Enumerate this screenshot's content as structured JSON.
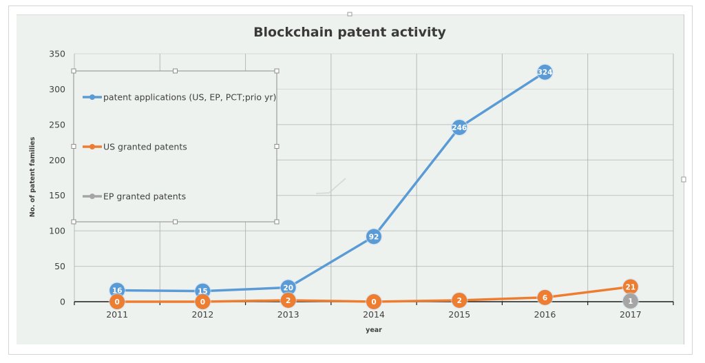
{
  "chart_data": {
    "type": "line",
    "title": "Blockchain patent activity",
    "xlabel": "year",
    "ylabel": "No. of patent families",
    "categories": [
      "2011",
      "2012",
      "2013",
      "2014",
      "2015",
      "2016",
      "2017"
    ],
    "ylim": [
      0,
      350
    ],
    "yticks": [
      0,
      50,
      100,
      150,
      200,
      250,
      300,
      350
    ],
    "grid": true,
    "legend_position": "top-left (inside plot, selected with handles)",
    "data_labels": true,
    "series": [
      {
        "name": "patent applications (US, EP, PCT;prio yr)",
        "color": "#5b9bd5",
        "values": [
          16,
          15,
          20,
          92,
          246,
          324,
          null
        ]
      },
      {
        "name": "US granted patents",
        "color": "#ed7d31",
        "values": [
          0,
          0,
          2,
          0,
          2,
          6,
          21
        ]
      },
      {
        "name": "EP granted patents",
        "color": "#a5a5a5",
        "values": [
          null,
          null,
          null,
          null,
          null,
          null,
          1
        ]
      }
    ]
  }
}
